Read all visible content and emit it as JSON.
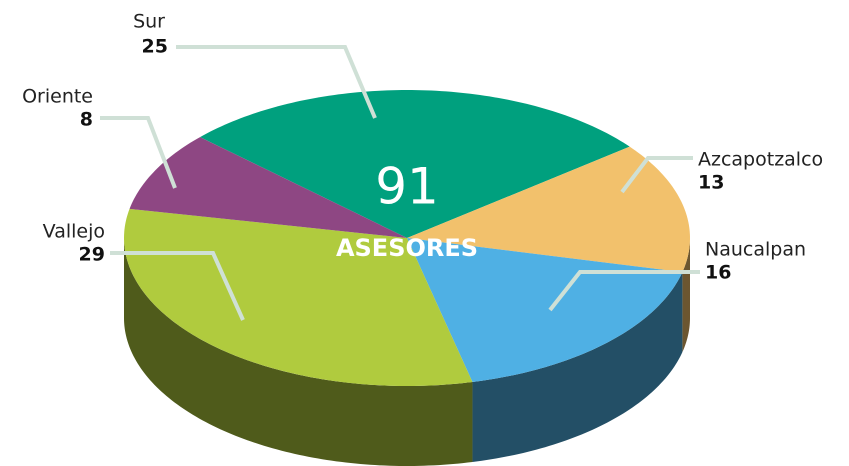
{
  "chart_data": {
    "type": "pie3d",
    "categories": [
      "Sur",
      "Azcapotzalco",
      "Naucalpan",
      "Vallejo",
      "Oriente"
    ],
    "values": [
      25,
      13,
      16,
      29,
      8
    ],
    "colors": [
      "#00a07e",
      "#f2c16c",
      "#4fb0e4",
      "#b0cb3e",
      "#8e4783"
    ],
    "center_value": 91,
    "center_label": "ASESORES"
  }
}
